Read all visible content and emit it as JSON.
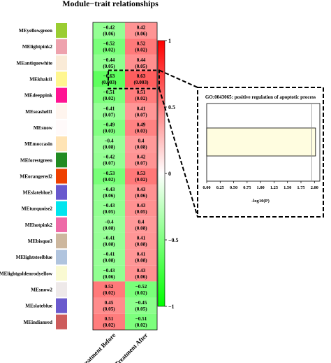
{
  "chart_data": [
    {
      "type": "heatmap",
      "title": "Module−trait relationships",
      "columns": [
        "Treatment Before",
        "Treatment After"
      ],
      "rows": [
        {
          "module": "MEyellowgreen",
          "color": "#9ACD32",
          "values": [
            -0.42,
            0.42
          ],
          "pvalues": [
            "0.06",
            "0.06"
          ]
        },
        {
          "module": "MElightpink2",
          "color": "#EEA2AD",
          "values": [
            -0.52,
            0.52
          ],
          "pvalues": [
            "0.02",
            "0.02"
          ]
        },
        {
          "module": "MEantiquewhite",
          "color": "#FAEBD7",
          "values": [
            -0.44,
            0.44
          ],
          "pvalues": [
            "0.05",
            "0.05"
          ]
        },
        {
          "module": "MEkhaki1",
          "color": "#FFF68F",
          "values": [
            -0.63,
            0.63
          ],
          "pvalues": [
            "0.003",
            "0.003"
          ]
        },
        {
          "module": "MEdeeppink",
          "color": "#FF1493",
          "values": [
            -0.51,
            0.51
          ],
          "pvalues": [
            "0.02",
            "0.02"
          ]
        },
        {
          "module": "MEseashell1",
          "color": "#FFF5EE",
          "values": [
            -0.41,
            0.41
          ],
          "pvalues": [
            "0.07",
            "0.07"
          ]
        },
        {
          "module": "MEsnow",
          "color": "#FFFAFA",
          "values": [
            -0.49,
            0.49
          ],
          "pvalues": [
            "0.03",
            "0.03"
          ]
        },
        {
          "module": "MEmoccasin",
          "color": "#FFE4B5",
          "values": [
            -0.4,
            0.4
          ],
          "pvalues": [
            "0.08",
            "0.08"
          ]
        },
        {
          "module": "MEforestgreen",
          "color": "#228B22",
          "values": [
            -0.42,
            0.42
          ],
          "pvalues": [
            "0.07",
            "0.07"
          ]
        },
        {
          "module": "MEorangered2",
          "color": "#EE4000",
          "values": [
            -0.53,
            0.53
          ],
          "pvalues": [
            "0.02",
            "0.02"
          ]
        },
        {
          "module": "MEslateblue3",
          "color": "#6959CD",
          "values": [
            -0.43,
            0.43
          ],
          "pvalues": [
            "0.06",
            "0.06"
          ]
        },
        {
          "module": "MEturquoise2",
          "color": "#00E5EE",
          "values": [
            -0.43,
            0.43
          ],
          "pvalues": [
            "0.05",
            "0.05"
          ]
        },
        {
          "module": "MEhotpink2",
          "color": "#EE6AA7",
          "values": [
            -0.4,
            0.4
          ],
          "pvalues": [
            "0.08",
            "0.08"
          ]
        },
        {
          "module": "MEbisque3",
          "color": "#CDB79E",
          "values": [
            -0.41,
            0.41
          ],
          "pvalues": [
            "0.08",
            "0.08"
          ]
        },
        {
          "module": "MElightsteelblue",
          "color": "#B0C4DE",
          "values": [
            -0.41,
            0.41
          ],
          "pvalues": [
            "0.08",
            "0.08"
          ]
        },
        {
          "module": "MElightgoldenrodyellow",
          "color": "#FAFAD2",
          "values": [
            -0.43,
            0.43
          ],
          "pvalues": [
            "0.06",
            "0.06"
          ]
        },
        {
          "module": "MEsnow2",
          "color": "#EEE9E9",
          "values": [
            0.52,
            -0.52
          ],
          "pvalues": [
            "0.02",
            "0.02"
          ]
        },
        {
          "module": "MEslateblue",
          "color": "#6A5ACD",
          "values": [
            0.45,
            -0.45
          ],
          "pvalues": [
            "0.05",
            "0.05"
          ]
        },
        {
          "module": "MEindianred",
          "color": "#CD5C5C",
          "values": [
            0.51,
            -0.51
          ],
          "pvalues": [
            "0.02",
            "0.02"
          ]
        }
      ],
      "highlighted_row": "MEkhaki1",
      "highlighted_column": "Treatment After",
      "colorbar": {
        "range": [
          -1,
          1
        ],
        "ticks": [
          "1",
          "0.5",
          "0",
          "−0.5",
          "−1"
        ],
        "low_color": "#00FF00",
        "mid_color": "#FFFFFF",
        "high_color": "#FF0000"
      }
    },
    {
      "type": "bar",
      "orientation": "horizontal",
      "title": "GO:0043065: positive regulation of apoptotic process",
      "values": [
        2.02
      ],
      "bar_color": "#FFFDE0",
      "reference_line": 1.95,
      "xlabel": "-log10(P)",
      "xlim": [
        0,
        2.1
      ],
      "xticks": [
        "0.00",
        "0.25",
        "0.50",
        "0.75",
        "1.00",
        "1.25",
        "1.50",
        "1.75",
        "2.00"
      ]
    }
  ]
}
